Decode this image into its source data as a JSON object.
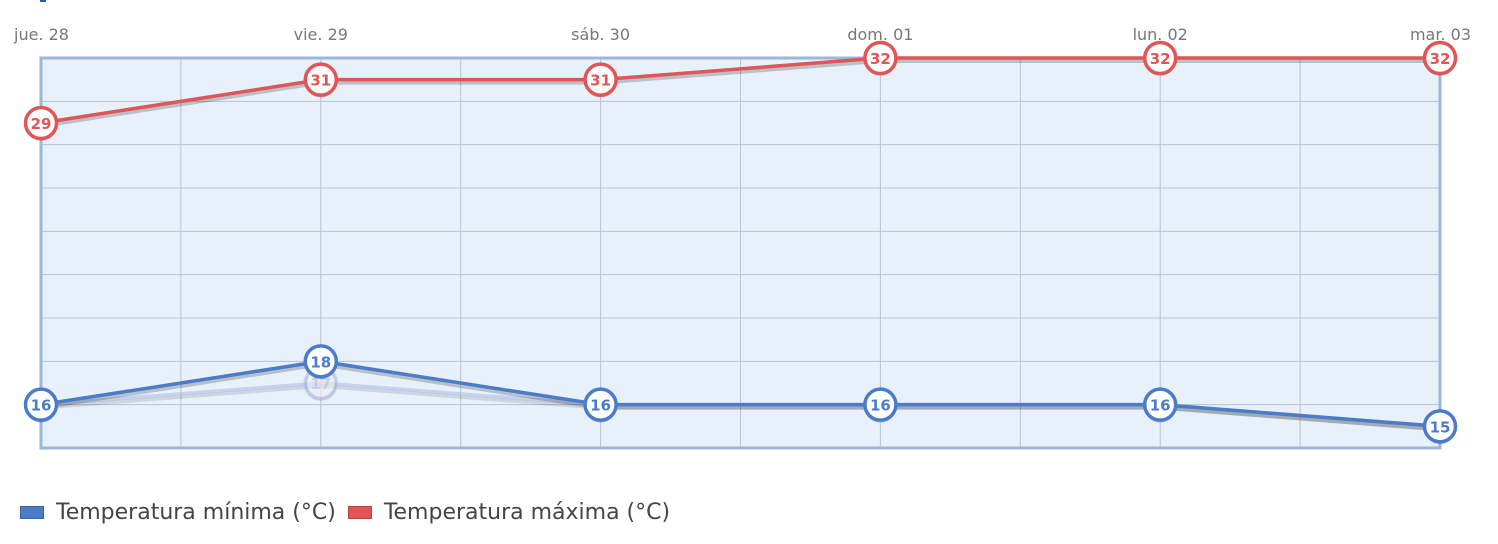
{
  "chart_data": {
    "type": "line",
    "categories": [
      "jue. 28",
      "vie. 29",
      "sáb. 30",
      "dom. 01",
      "lun. 02",
      "mar. 03"
    ],
    "ylim": [
      14,
      32
    ],
    "ytick_step": 2,
    "grid": true,
    "legend_position": "bottom-left",
    "series": [
      {
        "name": "Temperatura mínima (°C)",
        "values": [
          16,
          18,
          16,
          16,
          16,
          15
        ],
        "color": "#4a7cc8"
      },
      {
        "name": "Temperatura máxima (°C)",
        "values": [
          29,
          31,
          31,
          32,
          32,
          32
        ],
        "color": "#e05555"
      }
    ],
    "ghost_series": {
      "values": [
        16,
        17,
        16,
        16,
        16,
        15
      ],
      "color": "#a9b9e6"
    },
    "plot_background": "#e8f0fa",
    "plot_border": "#9db6da"
  }
}
